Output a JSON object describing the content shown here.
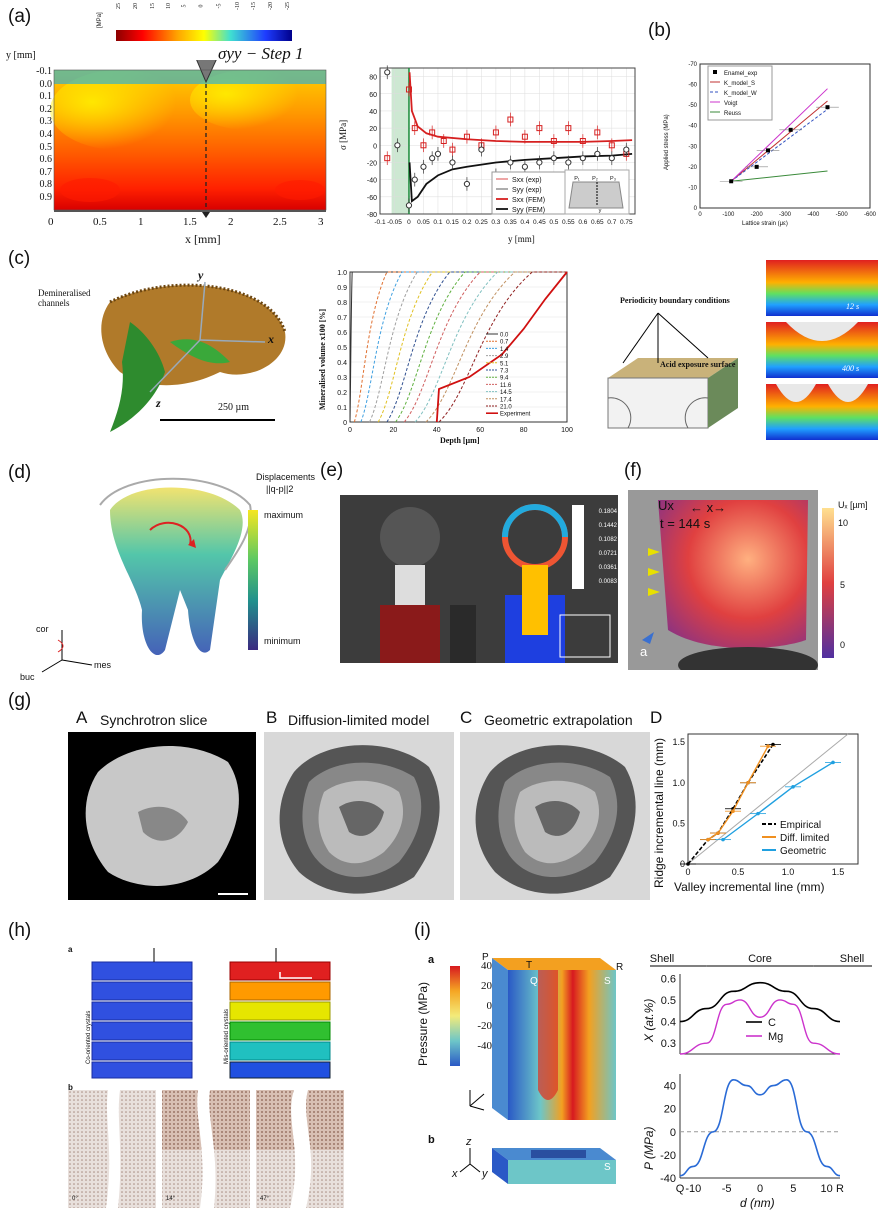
{
  "panels": {
    "a": {
      "letter": "(a)",
      "colorbar_unit": "[MPa]",
      "colorbar_ticks": [
        "25",
        "20",
        "15",
        "10",
        "5",
        "0",
        "-5",
        "-10",
        "-15",
        "-20",
        "-25"
      ],
      "map_title": "σyy − Step 1",
      "y_axis_label": "y [mm]",
      "x_axis_label": "x [mm]",
      "y_ticks": [
        "-0.1",
        "0.0",
        "0.1",
        "0.2",
        "0.3",
        "0.4",
        "0.5",
        "0.6",
        "0.7",
        "0.8",
        "0.9"
      ],
      "x_ticks": [
        "0",
        "0.5",
        "1",
        "1.5",
        "2",
        "2.5",
        "3"
      ],
      "plot_ylabel": "σ [MPa]",
      "plot_xlabel": "y [mm]",
      "plot_yticks": [
        "80",
        "60",
        "40",
        "20",
        "0",
        "-20",
        "-40",
        "-60",
        "-80"
      ],
      "plot_xticks": [
        "-0.1",
        "-0.05",
        "0",
        "0.05",
        "0.1",
        "0.15",
        "0.2",
        "0.25",
        "0.3",
        "0.35",
        "0.4",
        "0.45",
        "0.5",
        "0.55",
        "0.6",
        "0.65",
        "0.7",
        "0.75"
      ],
      "legend": [
        "Sxx (exp)",
        "Syy (exp)",
        "Sxx (FEM)",
        "Syy (FEM)"
      ],
      "inset_labels": [
        "P₁",
        "P₂",
        "P₃",
        "y"
      ]
    },
    "b": {
      "letter": "(b)",
      "ylabel": "Applied stress (MPa)",
      "xlabel": "Lattice strain (με)",
      "yticks": [
        "-70",
        "-60",
        "-50",
        "-40",
        "-30",
        "-20",
        "-10",
        "0"
      ],
      "xticks": [
        "0",
        "-100",
        "-200",
        "-300",
        "-400",
        "-500",
        "-600"
      ],
      "legend": [
        "Enamel_exp",
        "K_model_S",
        "K_model_W",
        "Voigt",
        "Reuss"
      ]
    },
    "c": {
      "letter": "(c)",
      "labels": [
        "Demineralised channels",
        "y",
        "x",
        "z",
        "250 µm"
      ],
      "plot_ylabel": "Mineralised volume x100 [%]",
      "plot_xlabel": "Depth [µm]",
      "yticks": [
        "0",
        "0.1",
        "0.2",
        "0.3",
        "0.4",
        "0.5",
        "0.6",
        "0.7",
        "0.8",
        "0.9",
        "1.0"
      ],
      "xticks": [
        "0",
        "20",
        "40",
        "60",
        "80",
        "100"
      ],
      "legend": [
        "0.0",
        "0.7",
        "1.4",
        "2.9",
        "5.1",
        "7.3",
        "9.4",
        "11.6",
        "14.5",
        "17.4",
        "21.0",
        "Experiment"
      ],
      "model_labels": [
        "Periodicity boundary conditions",
        "Acid exposure surface"
      ],
      "time_labels": [
        "12 s",
        "400 s"
      ]
    },
    "d": {
      "letter": "(d)",
      "title_line1": "Displacements",
      "title_line2": "||q-p||2",
      "max_label": "maximum",
      "min_label": "minimum",
      "axes": [
        "cor",
        "buc",
        "mes"
      ]
    },
    "e": {
      "letter": "(e)",
      "scale_values": [
        "0.1804",
        "0.1442",
        "0.1082",
        "0.0721",
        "0.0361",
        "0.0083"
      ]
    },
    "f": {
      "letter": "(f)",
      "ux": "Ux",
      "x_arrow": "← x→",
      "time": "t = 144 s",
      "unit": "Uₓ [µm]",
      "ticks": [
        "10",
        "5",
        "0"
      ],
      "sub": "a"
    },
    "g": {
      "letter": "(g)",
      "A": "A",
      "A_title": "Synchrotron slice",
      "B": "B",
      "B_title": "Diffusion-limited model",
      "C": "C",
      "C_title": "Geometric extrapolation",
      "D": "D",
      "D_ylabel": "Ridge incremental line (mm)",
      "D_xlabel": "Valley incremental line (mm)",
      "D_yticks": [
        "0",
        "0.5",
        "1.0",
        "1.5"
      ],
      "D_xticks": [
        "0",
        "0.5",
        "1.0",
        "1.5"
      ],
      "D_legend": [
        "Empirical",
        "Diff. limited",
        "Geometric"
      ]
    },
    "h": {
      "letter": "(h)",
      "a": "a",
      "b": "b",
      "left_label": "Co-oriented crystals",
      "right_label": "Mis-oriented crystals",
      "angles": [
        "0°",
        "14°",
        "47°"
      ]
    },
    "i": {
      "letter": "(i)",
      "a": "a",
      "b": "b",
      "corner_labels": [
        "P",
        "T",
        "R",
        "Q",
        "S",
        "S"
      ],
      "cbar_title": "Pressure (MPa)",
      "cbar_ticks": [
        "40",
        "20",
        "0",
        "-20",
        "-40"
      ],
      "region_labels": [
        "Shell",
        "Core",
        "Shell"
      ],
      "top_ylabel": "X (at.%)",
      "top_yticks": [
        "0.6",
        "0.5",
        "0.4",
        "0.3"
      ],
      "top_legend": [
        "C",
        "Mg"
      ],
      "bottom_ylabel": "P (MPa)",
      "bottom_yticks": [
        "40",
        "20",
        "0",
        "-20",
        "-40"
      ],
      "xticks": [
        "Q",
        "-10",
        "-5",
        "0",
        "5",
        "10",
        "R"
      ],
      "xlabel": "d (nm)",
      "axes": [
        "x",
        "y",
        "z"
      ]
    }
  },
  "colors": {
    "green_fill": "#cde8d2",
    "red_series": "#d62020",
    "black_series": "#111111",
    "magenta": "#cc33cc",
    "blue": "#2a6bd6"
  },
  "chart_data": [
    {
      "type": "scatter",
      "title": "",
      "xlabel": "y [mm]",
      "ylabel": "σ [MPa]",
      "xlim": [
        -0.1,
        0.78
      ],
      "ylim": [
        -80,
        90
      ],
      "series": [
        {
          "name": "Sxx (exp)",
          "x": [
            -0.075,
            0.0,
            0.02,
            0.05,
            0.08,
            0.12,
            0.15,
            0.2,
            0.25,
            0.3,
            0.35,
            0.4,
            0.45,
            0.5,
            0.55,
            0.6,
            0.65,
            0.7,
            0.75
          ],
          "y": [
            -15,
            65,
            20,
            0,
            15,
            5,
            -5,
            10,
            0,
            15,
            30,
            10,
            20,
            5,
            20,
            5,
            15,
            0,
            -10
          ]
        },
        {
          "name": "Syy (exp)",
          "x": [
            -0.075,
            -0.04,
            0.0,
            0.02,
            0.05,
            0.08,
            0.1,
            0.15,
            0.2,
            0.25,
            0.3,
            0.35,
            0.4,
            0.45,
            0.5,
            0.55,
            0.6,
            0.65,
            0.7,
            0.75
          ],
          "y": [
            85,
            0,
            -70,
            -40,
            -25,
            -15,
            -10,
            -20,
            -45,
            -5,
            -35,
            -20,
            -25,
            -20,
            -15,
            -20,
            -15,
            -10,
            -15,
            -5
          ]
        },
        {
          "name": "Sxx (FEM)",
          "x": [
            0.002,
            0.01,
            0.03,
            0.06,
            0.1,
            0.2,
            0.3,
            0.4,
            0.5,
            0.6,
            0.7,
            0.77
          ],
          "y": [
            85,
            40,
            22,
            14,
            10,
            7,
            5,
            4,
            4,
            4,
            5,
            6
          ]
        },
        {
          "name": "Syy (FEM)",
          "x": [
            0.002,
            0.01,
            0.03,
            0.06,
            0.1,
            0.15,
            0.2,
            0.3,
            0.4,
            0.5,
            0.6,
            0.7,
            0.77
          ],
          "y": [
            -20,
            -65,
            -60,
            -45,
            -35,
            -28,
            -25,
            -20,
            -17,
            -15,
            -13,
            -12,
            -10
          ]
        }
      ]
    },
    {
      "type": "line",
      "title": "",
      "xlabel": "Lattice strain (με)",
      "ylabel": "Applied stress (MPa)",
      "xlim": [
        0,
        -600
      ],
      "ylim": [
        0,
        -70
      ],
      "series": [
        {
          "name": "Enamel_exp",
          "x": [
            -110,
            -200,
            -240,
            -320,
            -450
          ],
          "y": [
            -13,
            -20,
            -28,
            -38,
            -49
          ]
        },
        {
          "name": "K_model_S",
          "x": [
            -110,
            -450
          ],
          "y": [
            -13,
            -52
          ]
        },
        {
          "name": "K_model_W",
          "x": [
            -110,
            -450
          ],
          "y": [
            -13,
            -48
          ]
        },
        {
          "name": "Voigt",
          "x": [
            -110,
            -450
          ],
          "y": [
            -13,
            -58
          ]
        },
        {
          "name": "Reuss",
          "x": [
            -110,
            -450
          ],
          "y": [
            -13,
            -18
          ]
        }
      ]
    },
    {
      "type": "line",
      "title": "",
      "xlabel": "Depth [µm]",
      "ylabel": "Mineralised volume x100 [%]",
      "xlim": [
        0,
        100
      ],
      "ylim": [
        0,
        1
      ],
      "series": [
        {
          "name": "0.0",
          "x": [
            0,
            0.5,
            1
          ],
          "y": [
            0,
            0.5,
            1
          ]
        },
        {
          "name": "0.7",
          "x": [
            2,
            9,
            17
          ],
          "y": [
            0,
            0.5,
            1
          ]
        },
        {
          "name": "1.4",
          "x": [
            5,
            14,
            24
          ],
          "y": [
            0,
            0.5,
            1
          ]
        },
        {
          "name": "2.9",
          "x": [
            9,
            20,
            31
          ],
          "y": [
            0,
            0.5,
            1
          ]
        },
        {
          "name": "5.1",
          "x": [
            13,
            26,
            38
          ],
          "y": [
            0,
            0.5,
            1
          ]
        },
        {
          "name": "7.3",
          "x": [
            17,
            32,
            46
          ],
          "y": [
            0,
            0.5,
            1
          ]
        },
        {
          "name": "9.4",
          "x": [
            21,
            38,
            53
          ],
          "y": [
            0,
            0.5,
            1
          ]
        },
        {
          "name": "11.6",
          "x": [
            25,
            44,
            60
          ],
          "y": [
            0,
            0.5,
            1
          ]
        },
        {
          "name": "14.5",
          "x": [
            30,
            51,
            68
          ],
          "y": [
            0,
            0.5,
            1
          ]
        },
        {
          "name": "17.4",
          "x": [
            35,
            58,
            76
          ],
          "y": [
            0,
            0.5,
            1
          ]
        },
        {
          "name": "21.0",
          "x": [
            41,
            65,
            84
          ],
          "y": [
            0,
            0.5,
            1
          ]
        },
        {
          "name": "Experiment",
          "x": [
            40,
            41,
            55,
            70,
            80,
            90,
            100
          ],
          "y": [
            0,
            0.22,
            0.3,
            0.45,
            0.62,
            0.82,
            1.0
          ]
        }
      ]
    },
    {
      "type": "scatter",
      "title": "",
      "xlabel": "Valley incremental line (mm)",
      "ylabel": "Ridge incremental line (mm)",
      "xlim": [
        0,
        1.7
      ],
      "ylim": [
        0,
        1.6
      ],
      "series": [
        {
          "name": "Empirical",
          "x": [
            0,
            0.2,
            0.3,
            0.45,
            0.6,
            0.85
          ],
          "y": [
            0,
            0.3,
            0.38,
            0.68,
            1.0,
            1.47
          ]
        },
        {
          "name": "Diff. limited",
          "x": [
            0.2,
            0.3,
            0.45,
            0.6,
            0.8
          ],
          "y": [
            0.3,
            0.38,
            0.65,
            1.0,
            1.45
          ]
        },
        {
          "name": "Geometric",
          "x": [
            0.35,
            0.7,
            1.05,
            1.45
          ],
          "y": [
            0.3,
            0.62,
            0.95,
            1.25
          ]
        }
      ]
    },
    {
      "type": "line",
      "title": "",
      "xlabel": "d (nm)",
      "ylabel": "X (at.%)",
      "xlim": [
        -12,
        12
      ],
      "ylim": [
        0.25,
        0.62
      ],
      "series": [
        {
          "name": "C",
          "x": [
            -12,
            -8,
            -4,
            0,
            4,
            8,
            12
          ],
          "y": [
            0.4,
            0.46,
            0.54,
            0.58,
            0.54,
            0.46,
            0.4
          ]
        },
        {
          "name": "Mg",
          "x": [
            -12,
            -8,
            -5,
            -3,
            0,
            3,
            5,
            8,
            12
          ],
          "y": [
            0.25,
            0.3,
            0.48,
            0.5,
            0.42,
            0.5,
            0.48,
            0.3,
            0.25
          ]
        }
      ]
    },
    {
      "type": "line",
      "title": "",
      "xlabel": "d (nm)",
      "ylabel": "P (MPa)",
      "xlim": [
        -12,
        12
      ],
      "ylim": [
        -40,
        50
      ],
      "series": [
        {
          "name": "",
          "x": [
            -12,
            -10,
            -7,
            -4,
            -2,
            0,
            2,
            4,
            7,
            10,
            12
          ],
          "y": [
            -38,
            -30,
            0,
            45,
            40,
            32,
            40,
            45,
            0,
            -30,
            -38
          ]
        }
      ]
    }
  ]
}
